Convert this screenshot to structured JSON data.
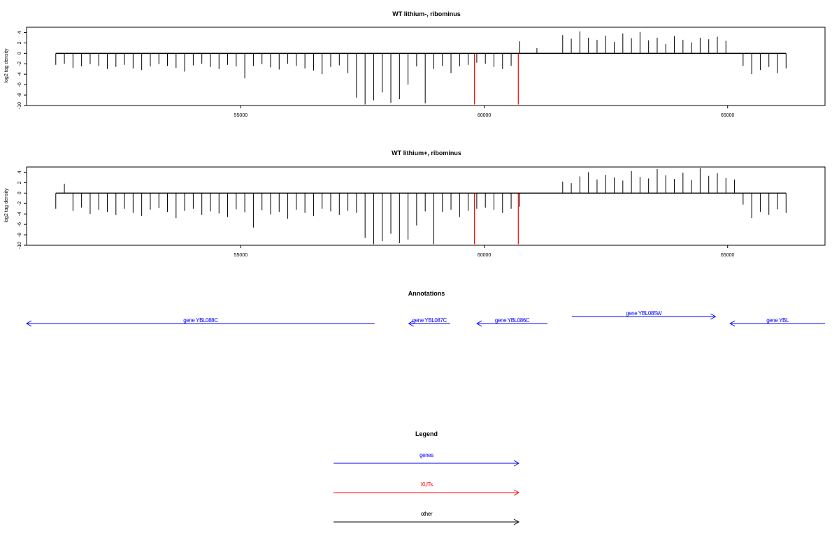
{
  "chart_data": [
    {
      "type": "bar",
      "title": "WT lithium-, ribominus",
      "xlabel": "",
      "ylabel": "log2 tag density",
      "xlim": [
        50600,
        67000
      ],
      "ylim": [
        -10,
        5
      ],
      "x_ticks": [
        55000,
        60000,
        65000
      ],
      "y_ticks": [
        -10,
        -8,
        -6,
        -4,
        -2,
        0,
        2,
        4
      ],
      "x_tick_labels": [
        "55000",
        "60000",
        "65000"
      ],
      "y_tick_labels": [
        "-10",
        "-8",
        "-6",
        "-4",
        "-2",
        "0",
        "2",
        "4"
      ],
      "colors": {
        "bars": "#000000",
        "xut_bars": "#ff0000",
        "axis": "#000000"
      },
      "series": [
        {
          "name": "",
          "x_start": 51200,
          "x_end": 66200,
          "values": [
            -2.2,
            -2.0,
            -2.8,
            -2.5,
            -2.1,
            -2.4,
            -3.0,
            -2.6,
            -2.2,
            -2.9,
            -3.2,
            -2.5,
            -2.1,
            -2.4,
            -2.8,
            -3.5,
            -2.3,
            -2.0,
            -2.6,
            -3.0,
            -2.2,
            -2.5,
            -4.8,
            -2.4,
            -2.1,
            -2.7,
            -3.1,
            -2.0,
            -2.4,
            -2.9,
            -3.3,
            -4.0,
            -2.6,
            -2.3,
            -3.8,
            -8.5,
            -9.8,
            -9.0,
            -7.5,
            -9.5,
            -8.8,
            -6.0,
            -2.5,
            -9.6,
            -3.0,
            -2.4,
            -3.8,
            -2.5,
            -2.2,
            -1.8,
            -2.0,
            -2.6,
            -3.0,
            -2.4,
            2.3,
            0.0,
            1.0,
            0.0,
            0.0,
            3.5,
            2.8,
            4.2,
            3.0,
            2.6,
            3.4,
            2.2,
            3.8,
            2.9,
            4.1,
            2.5,
            3.0,
            1.8,
            3.3,
            2.6,
            2.1,
            3.0,
            2.7,
            3.2,
            2.4,
            0.0,
            -2.4,
            -4.0,
            -3.2,
            -2.6,
            -3.8,
            -2.9
          ]
        }
      ],
      "xut_bars": [
        {
          "x": 59800,
          "value": -9.8
        },
        {
          "x": 60700,
          "value": -9.8
        }
      ]
    },
    {
      "type": "bar",
      "title": "WT lithium+, ribominus",
      "xlabel": "",
      "ylabel": "log2 tag density",
      "xlim": [
        50600,
        67000
      ],
      "ylim": [
        -10,
        5
      ],
      "x_ticks": [
        55000,
        60000,
        65000
      ],
      "y_ticks": [
        -10,
        -8,
        -6,
        -4,
        -2,
        0,
        2,
        4
      ],
      "x_tick_labels": [
        "55000",
        "60000",
        "65000"
      ],
      "y_tick_labels": [
        "-10",
        "-8",
        "-6",
        "-4",
        "-2",
        "0",
        "2",
        "4"
      ],
      "colors": {
        "bars": "#000000",
        "xut_bars": "#ff0000",
        "axis": "#000000"
      },
      "series": [
        {
          "name": "",
          "x_start": 51200,
          "x_end": 66200,
          "values": [
            -3.0,
            1.8,
            -3.4,
            -2.8,
            -4.0,
            -3.2,
            -3.6,
            -4.2,
            -3.0,
            -3.8,
            -4.4,
            -3.2,
            -2.9,
            -3.6,
            -4.8,
            -3.4,
            -3.0,
            -4.2,
            -3.5,
            -3.9,
            -4.6,
            -3.1,
            -3.7,
            -6.6,
            -3.3,
            -4.1,
            -3.6,
            -4.9,
            -3.2,
            -3.8,
            -4.4,
            -3.0,
            -3.5,
            -4.2,
            -3.4,
            -3.8,
            -8.6,
            -9.8,
            -9.2,
            -7.8,
            -9.6,
            -8.9,
            -6.2,
            -3.5,
            -9.8,
            -3.6,
            -3.2,
            -4.6,
            -3.4,
            -3.0,
            -2.8,
            -3.2,
            -3.8,
            -3.0,
            -2.6,
            0.0,
            0.0,
            0.0,
            0.0,
            2.2,
            1.9,
            3.2,
            4.0,
            2.6,
            3.5,
            3.0,
            2.4,
            4.2,
            3.1,
            2.8,
            4.6,
            3.4,
            2.7,
            3.9,
            2.5,
            4.8,
            3.3,
            3.8,
            2.9,
            2.6,
            -2.2,
            -4.8,
            -3.6,
            -4.2,
            -3.1,
            -3.8
          ]
        }
      ],
      "xut_bars": [
        {
          "x": 59800,
          "value": -9.8
        },
        {
          "x": 60700,
          "value": -9.8
        }
      ]
    }
  ],
  "annotations": {
    "title": "Annotations",
    "genes": [
      {
        "label": "gene YBL088C",
        "strand": "-",
        "start": 50600,
        "end": 57750,
        "row": 1,
        "color": "#0000ff"
      },
      {
        "label": "gene YBL087C",
        "strand": "-",
        "start": 58450,
        "end": 59300,
        "row": 1,
        "color": "#0000ff"
      },
      {
        "label": "gene YBL086C",
        "strand": "-",
        "start": 59850,
        "end": 61300,
        "row": 1,
        "color": "#0000ff"
      },
      {
        "label": "gene YBL085W",
        "strand": "+",
        "start": 61800,
        "end": 64750,
        "row": 0,
        "color": "#0000ff"
      },
      {
        "label": "gene YBL",
        "strand": "-",
        "start": 65050,
        "end": 67000,
        "row": 1,
        "color": "#0000ff"
      }
    ]
  },
  "legend": {
    "title": "Legend",
    "items": [
      {
        "label": "genes",
        "color": "#0000ff"
      },
      {
        "label": "XUTs",
        "color": "#ff0000"
      },
      {
        "label": "other",
        "color": "#000000"
      }
    ]
  }
}
